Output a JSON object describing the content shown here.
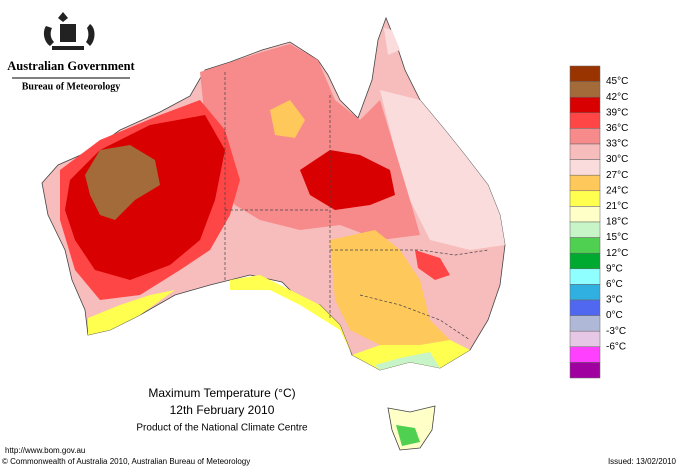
{
  "header": {
    "government": "Australian Government",
    "agency": "Bureau of Meteorology"
  },
  "map": {
    "title": "Maximum Temperature (°C)",
    "date": "12th February 2010",
    "product": "Product of the National Climate Centre"
  },
  "legend": {
    "labels": [
      "45°C",
      "42°C",
      "39°C",
      "36°C",
      "33°C",
      "30°C",
      "27°C",
      "24°C",
      "21°C",
      "18°C",
      "15°C",
      "12°C",
      "9°C",
      "6°C",
      "3°C",
      "0°C",
      "-3°C",
      "-6°C"
    ],
    "colors": [
      "#993300",
      "#a36a3a",
      "#d80000",
      "#ff4646",
      "#f78a8a",
      "#f7bcbc",
      "#fbdcdc",
      "#ffc85a",
      "#ffff50",
      "#ffffc8",
      "#c8f5c8",
      "#50d050",
      "#00aa30",
      "#90ffff",
      "#30b0e0",
      "#5068f0",
      "#b0b8d8",
      "#e6c8e6",
      "#ff40ff",
      "#a000a0"
    ]
  },
  "footer": {
    "url": "http://www.bom.gov.au",
    "copyright": "© Commonwealth of Australia 2010, Australian Bureau of Meteorology",
    "issued": "Issued: 13/02/2010"
  }
}
